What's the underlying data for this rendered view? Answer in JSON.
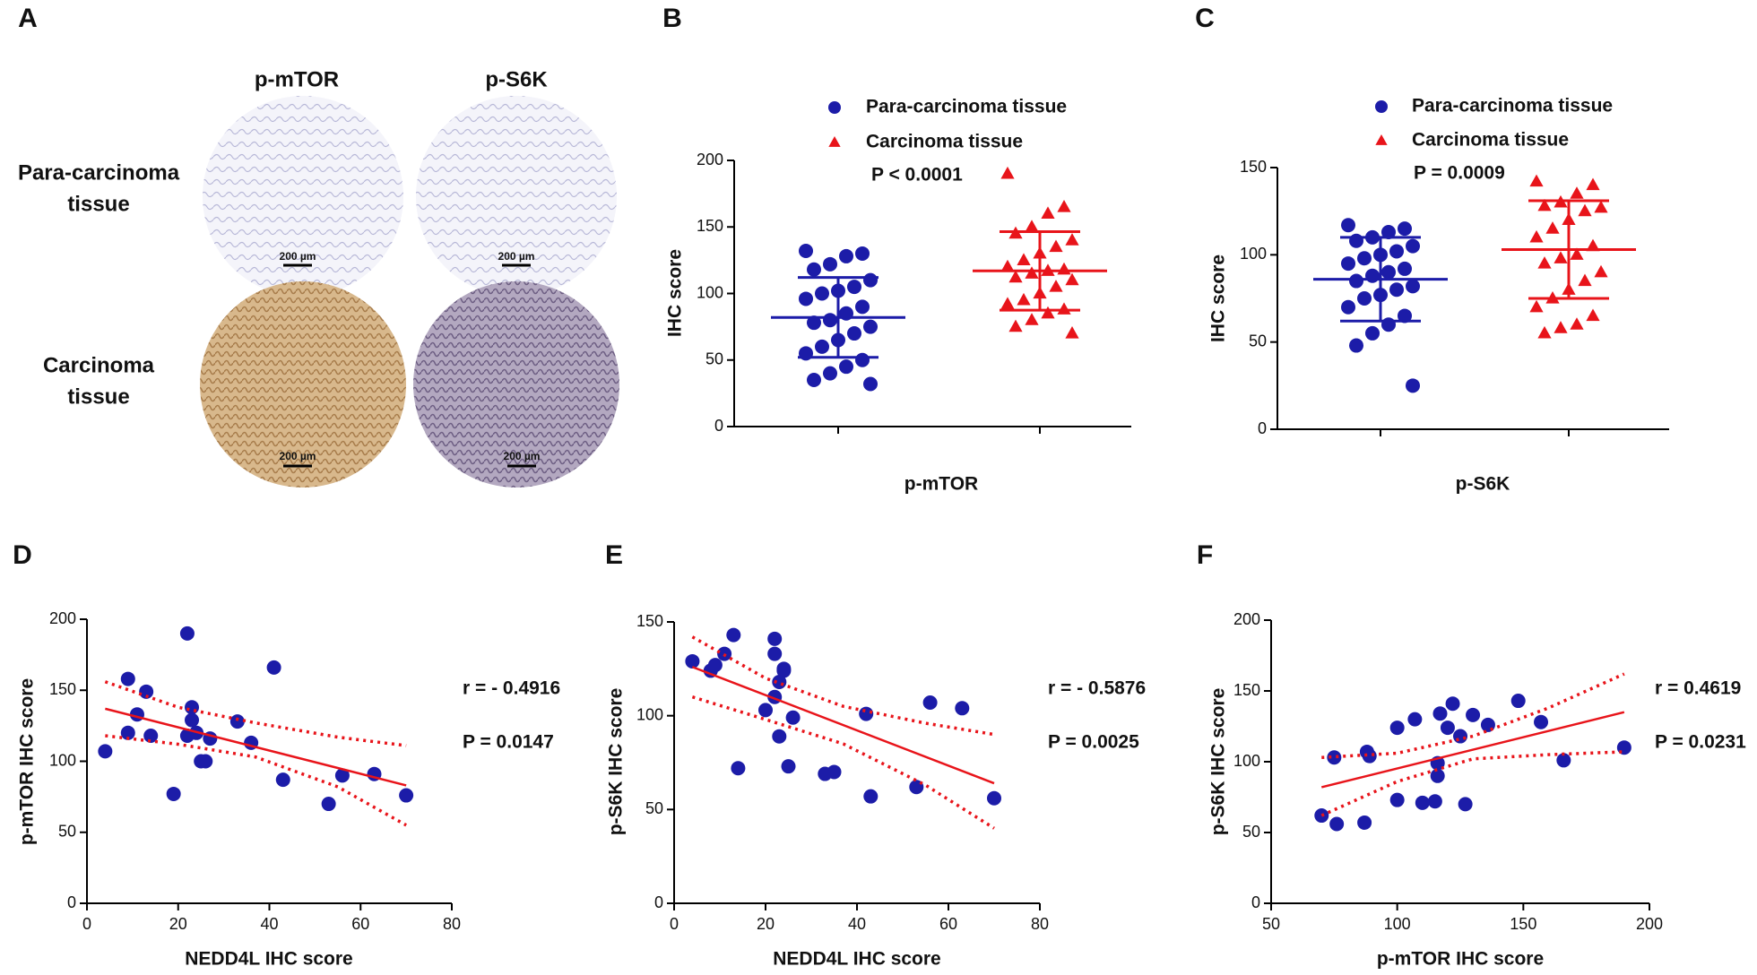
{
  "panel_a": {
    "letter": "A",
    "columns": [
      "p-mTOR",
      "p-S6K"
    ],
    "rows": [
      [
        "Para-carcinoma",
        "tissue"
      ],
      [
        "Carcinoma",
        "tissue"
      ]
    ],
    "scale_bar": "200 µm"
  },
  "chart_data": [
    {
      "type": "strip",
      "panel": "B",
      "ylabel": "IHC score",
      "xlabel": "p-mTOR",
      "annotation": "P < 0.0001",
      "ylim": [
        0,
        200
      ],
      "yticks": [
        0,
        50,
        100,
        150,
        200
      ],
      "series": [
        {
          "name": "Para-carcinoma tissue",
          "color": "#1c1ca8",
          "marker": "circle",
          "mean": 82,
          "sd": 30,
          "values": [
            132,
            130,
            128,
            122,
            118,
            110,
            105,
            102,
            100,
            96,
            90,
            85,
            80,
            78,
            75,
            70,
            65,
            60,
            55,
            50,
            45,
            40,
            35,
            32
          ]
        },
        {
          "name": "Carcinoma tissue",
          "color": "#e8141a",
          "marker": "triangle",
          "mean": 117,
          "sd": 29.5,
          "values": [
            190,
            165,
            160,
            150,
            145,
            140,
            135,
            130,
            125,
            120,
            118,
            117,
            115,
            112,
            110,
            105,
            100,
            95,
            92,
            88,
            85,
            80,
            75,
            70
          ]
        }
      ]
    },
    {
      "type": "strip",
      "panel": "C",
      "ylabel": "IHC score",
      "xlabel": "p-S6K",
      "annotation": "P = 0.0009",
      "ylim": [
        0,
        150
      ],
      "yticks": [
        0,
        50,
        100,
        150
      ],
      "series": [
        {
          "name": "Para-carcinoma tissue",
          "color": "#1c1ca8",
          "marker": "circle",
          "mean": 86,
          "sd": 24,
          "values": [
            117,
            115,
            113,
            110,
            108,
            105,
            102,
            100,
            98,
            95,
            92,
            90,
            88,
            85,
            82,
            80,
            77,
            75,
            70,
            65,
            60,
            55,
            48,
            25
          ]
        },
        {
          "name": "Carcinoma tissue",
          "color": "#e8141a",
          "marker": "triangle",
          "mean": 103,
          "sd": 28,
          "values": [
            142,
            140,
            135,
            130,
            128,
            127,
            125,
            120,
            115,
            110,
            105,
            100,
            98,
            95,
            90,
            85,
            80,
            75,
            70,
            65,
            60,
            58,
            55
          ]
        }
      ]
    },
    {
      "type": "scatter",
      "panel": "D",
      "xlabel": "NEDD4L IHC score",
      "ylabel": "p-mTOR IHC score",
      "annotations": [
        "r = - 0.4916",
        "P = 0.0147"
      ],
      "xlim": [
        0,
        80
      ],
      "xticks": [
        0,
        20,
        40,
        60,
        80
      ],
      "ylim": [
        0,
        200
      ],
      "yticks": [
        0,
        50,
        100,
        150,
        200
      ],
      "color": "#1c1ca8",
      "fit_color": "#e8141a",
      "x": [
        4,
        9,
        9,
        11,
        13,
        14,
        19,
        22,
        22,
        23,
        23,
        24,
        25,
        26,
        27,
        33,
        36,
        41,
        43,
        53,
        56,
        63,
        70
      ],
      "y": [
        107,
        158,
        120,
        133,
        149,
        118,
        77,
        190,
        118,
        138,
        129,
        120,
        100,
        100,
        116,
        128,
        113,
        166,
        87,
        70,
        90,
        91,
        76
      ],
      "fit": {
        "x": [
          4,
          70
        ],
        "y": [
          137,
          83
        ]
      },
      "ci_upper": {
        "x": [
          4,
          20,
          37,
          55,
          70
        ],
        "y": [
          156,
          138,
          127,
          117,
          111
        ]
      },
      "ci_lower": {
        "x": [
          4,
          20,
          37,
          55,
          70
        ],
        "y": [
          118,
          112,
          103,
          82,
          55
        ]
      }
    },
    {
      "type": "scatter",
      "panel": "E",
      "xlabel": "NEDD4L IHC score",
      "ylabel": "p-S6K IHC score",
      "annotations": [
        "r = - 0.5876",
        "P = 0.0025"
      ],
      "xlim": [
        0,
        80
      ],
      "xticks": [
        0,
        20,
        40,
        60,
        80
      ],
      "ylim": [
        0,
        150
      ],
      "yticks": [
        0,
        50,
        100,
        150
      ],
      "color": "#1c1ca8",
      "fit_color": "#e8141a",
      "x": [
        4,
        8,
        9,
        11,
        13,
        14,
        20,
        22,
        22,
        22,
        23,
        23,
        24,
        24,
        25,
        26,
        33,
        35,
        42,
        43,
        53,
        56,
        63,
        70
      ],
      "y": [
        129,
        124,
        127,
        133,
        143,
        72,
        103,
        141,
        133,
        110,
        89,
        118,
        125,
        124,
        73,
        99,
        69,
        70,
        101,
        57,
        62,
        107,
        104,
        56
      ],
      "fit": {
        "x": [
          4,
          70
        ],
        "y": [
          126,
          64
        ]
      },
      "ci_upper": {
        "x": [
          4,
          20,
          37,
          55,
          70
        ],
        "y": [
          142,
          120,
          105,
          96,
          90
        ]
      },
      "ci_lower": {
        "x": [
          4,
          20,
          37,
          55,
          70
        ],
        "y": [
          110,
          98,
          85,
          63,
          40
        ]
      }
    },
    {
      "type": "scatter",
      "panel": "F",
      "xlabel": "p-mTOR IHC score",
      "ylabel": "p-S6K IHC score",
      "annotations": [
        "r = 0.4619",
        "P = 0.0231"
      ],
      "xlim": [
        50,
        200
      ],
      "xticks": [
        50,
        100,
        150,
        200
      ],
      "ylim": [
        0,
        200
      ],
      "yticks": [
        0,
        50,
        100,
        150,
        200
      ],
      "color": "#1c1ca8",
      "fit_color": "#e8141a",
      "x": [
        70,
        75,
        76,
        87,
        88,
        89,
        100,
        100,
        107,
        110,
        115,
        116,
        116,
        117,
        120,
        122,
        125,
        127,
        130,
        136,
        148,
        157,
        166,
        190
      ],
      "y": [
        62,
        103,
        56,
        57,
        107,
        104,
        124,
        73,
        130,
        71,
        72,
        99,
        90,
        134,
        124,
        141,
        118,
        70,
        133,
        126,
        143,
        128,
        101,
        110
      ],
      "fit": {
        "x": [
          70,
          190
        ],
        "y": [
          82,
          135
        ]
      },
      "ci_upper": {
        "x": [
          70,
          100,
          130,
          160,
          190
        ],
        "y": [
          103,
          106,
          118,
          138,
          162
        ]
      },
      "ci_lower": {
        "x": [
          70,
          100,
          130,
          160,
          190
        ],
        "y": [
          62,
          86,
          102,
          105,
          107
        ]
      }
    }
  ]
}
